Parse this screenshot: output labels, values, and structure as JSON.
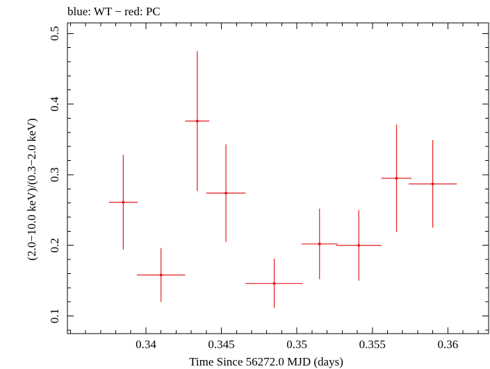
{
  "chart_data": {
    "type": "scatter",
    "title": "blue: WT − red: PC",
    "xlabel": "Time Since 56272.0 MJD (days)",
    "ylabel": "(2.0−10.0 keV)/(0.3−2.0 keV)",
    "xlim": [
      0.3348,
      0.3627
    ],
    "ylim": [
      0.075,
      0.515
    ],
    "x_ticks": [
      0.34,
      0.345,
      0.35,
      0.355,
      0.36
    ],
    "x_tick_labels": [
      "0.34",
      "0.345",
      "0.35",
      "0.355",
      "0.36"
    ],
    "y_ticks": [
      0.1,
      0.2,
      0.3,
      0.4,
      0.5
    ],
    "y_tick_labels": [
      "0.1",
      "0.2",
      "0.3",
      "0.4",
      "0.5"
    ],
    "x_minor_step": 0.001,
    "y_minor_step": 0.02,
    "grid": false,
    "series": [
      {
        "color": "#e31a1c",
        "points": [
          {
            "x": 0.3385,
            "xerr": 0.00095,
            "y": 0.261,
            "yerr_low": 0.067,
            "yerr_high": 0.067
          },
          {
            "x": 0.341,
            "xerr": 0.0016,
            "y": 0.158,
            "yerr_low": 0.038,
            "yerr_high": 0.038
          },
          {
            "x": 0.3434,
            "xerr": 0.0008,
            "y": 0.376,
            "yerr_low": 0.099,
            "yerr_high": 0.099
          },
          {
            "x": 0.3453,
            "xerr": 0.0013,
            "y": 0.274,
            "yerr_low": 0.069,
            "yerr_high": 0.069
          },
          {
            "x": 0.3485,
            "xerr": 0.0019,
            "y": 0.146,
            "yerr_low": 0.035,
            "yerr_high": 0.035
          },
          {
            "x": 0.3515,
            "xerr": 0.0012,
            "y": 0.202,
            "yerr_low": 0.05,
            "yerr_high": 0.05
          },
          {
            "x": 0.3541,
            "xerr": 0.0015,
            "y": 0.2,
            "yerr_low": 0.05,
            "yerr_high": 0.05
          },
          {
            "x": 0.3566,
            "xerr": 0.001,
            "y": 0.295,
            "yerr_low": 0.076,
            "yerr_high": 0.076
          },
          {
            "x": 0.359,
            "xerr": 0.0016,
            "y": 0.287,
            "yerr_low": 0.062,
            "yerr_high": 0.062
          }
        ]
      }
    ]
  }
}
